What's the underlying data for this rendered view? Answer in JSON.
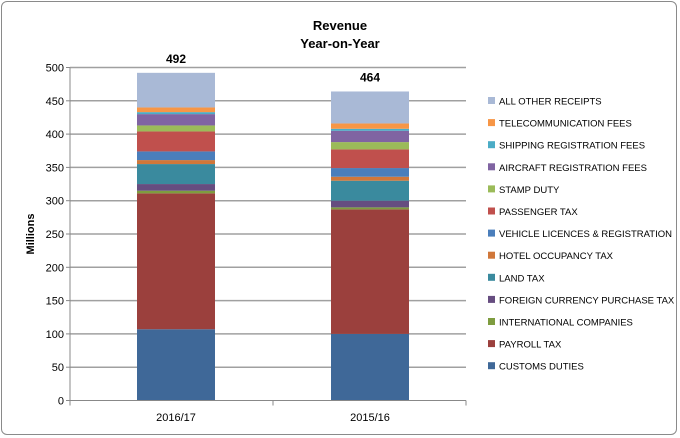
{
  "chart_data": {
    "type": "bar",
    "stacked": true,
    "title": "Revenue",
    "subtitle": "Year-on-Year",
    "ylabel": "Millions",
    "xlabel": "",
    "ylim": [
      0,
      500
    ],
    "yticks": [
      0,
      50,
      100,
      150,
      200,
      250,
      300,
      350,
      400,
      450,
      500
    ],
    "grid": true,
    "legend": "right",
    "categories": [
      "2016/17",
      "2015/16"
    ],
    "totals": [
      492,
      464
    ],
    "series": [
      {
        "name": "CUSTOMS DUTIES",
        "color": "#3F6898",
        "values": [
          107,
          100
        ]
      },
      {
        "name": "PAYROLL TAX",
        "color": "#9B403D",
        "values": [
          204,
          187
        ]
      },
      {
        "name": "INTERNATIONAL COMPANIES",
        "color": "#7E9C3F",
        "values": [
          4,
          3
        ]
      },
      {
        "name": "FOREIGN CURRENCY PURCHASE TAX",
        "color": "#664D80",
        "values": [
          10,
          10
        ]
      },
      {
        "name": "LAND TAX",
        "color": "#3A8A9E",
        "values": [
          30,
          30
        ]
      },
      {
        "name": "HOTEL OCCUPANCY TAX",
        "color": "#D0773A",
        "values": [
          6,
          6
        ]
      },
      {
        "name": "VEHICLE LICENCES & REGISTRATION",
        "color": "#4A7EBB",
        "values": [
          13,
          13
        ]
      },
      {
        "name": "PASSENGER TAX",
        "color": "#C0504D",
        "values": [
          30,
          28
        ]
      },
      {
        "name": "STAMP DUTY",
        "color": "#9BBB59",
        "values": [
          9,
          11
        ]
      },
      {
        "name": "AIRCRAFT REGISTRATION FEES",
        "color": "#8064A2",
        "values": [
          17,
          17
        ]
      },
      {
        "name": "SHIPPING REGISTRATION FEES",
        "color": "#4BACC6",
        "values": [
          3,
          3
        ]
      },
      {
        "name": "TELECOMMUNICATION FEES",
        "color": "#F79646",
        "values": [
          7,
          8
        ]
      },
      {
        "name": "ALL OTHER RECEIPTS",
        "color": "#A9B9D6",
        "values": [
          52,
          48
        ]
      }
    ]
  }
}
